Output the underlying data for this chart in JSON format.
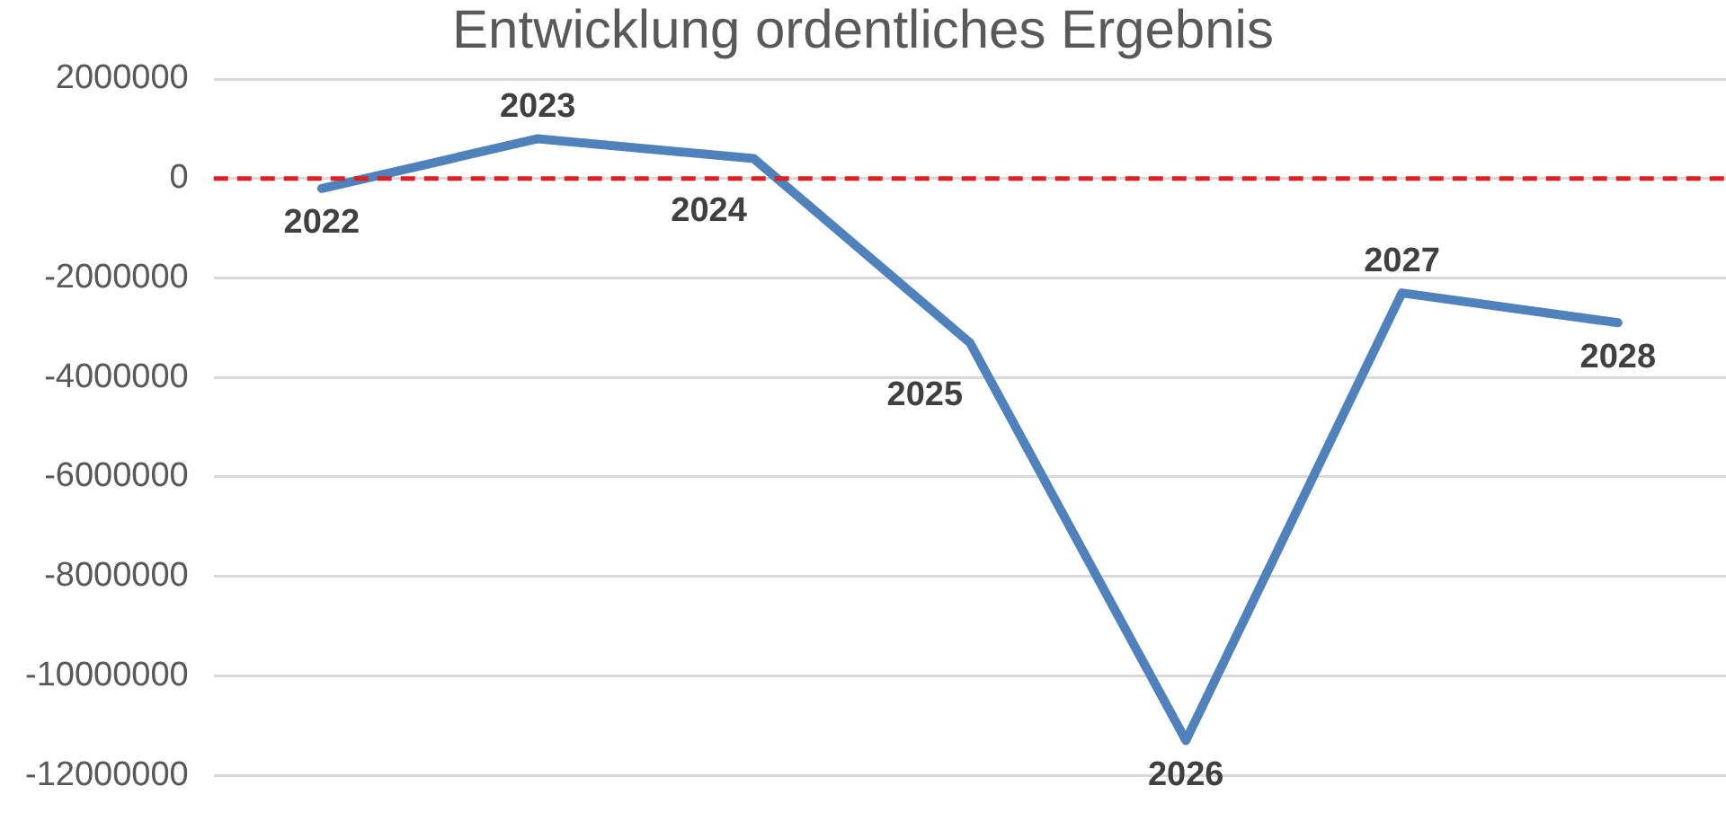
{
  "chart_data": {
    "type": "line",
    "title": "Entwicklung ordentliches Ergebnis",
    "categories": [
      "2022",
      "2023",
      "2024",
      "2025",
      "2026",
      "2027",
      "2028"
    ],
    "series": [
      {
        "color": "#4f81bd",
        "values": [
          -200000,
          800000,
          400000,
          -3300000,
          -11300000,
          -2300000,
          -2900000
        ]
      }
    ],
    "ylim": [
      -12000000,
      2000000
    ],
    "yticks": [
      -12000000,
      -10000000,
      -8000000,
      -6000000,
      -4000000,
      -2000000,
      0,
      2000000
    ],
    "grid": "y",
    "tick_labels": "y",
    "legend": false,
    "marker": "none",
    "line_style": "solid",
    "ref_lines": [
      {
        "axis": "y",
        "value": 0,
        "color": "#e02020",
        "line_style": "dashed"
      }
    ]
  }
}
